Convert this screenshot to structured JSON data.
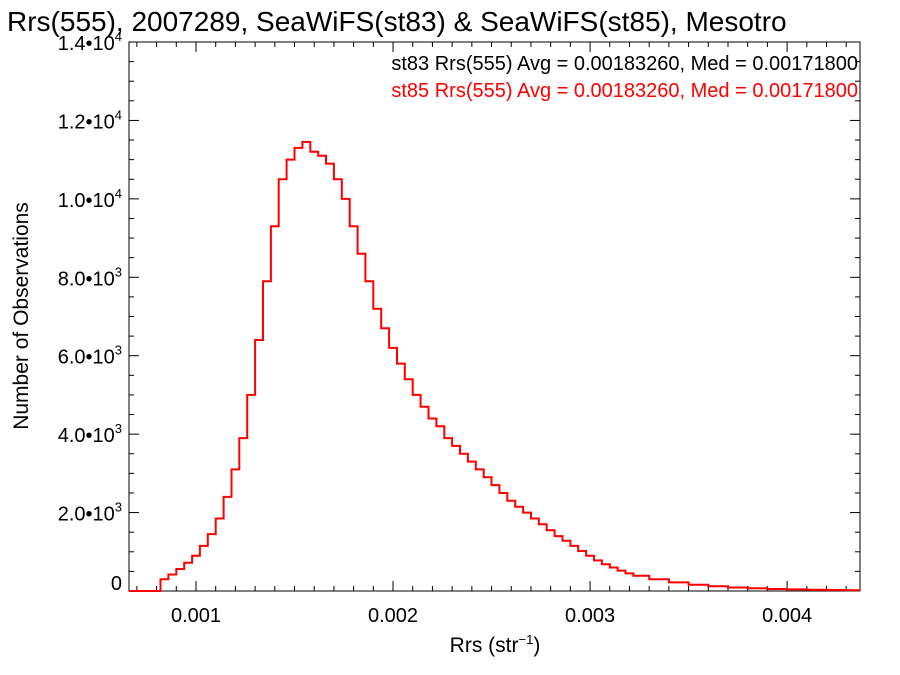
{
  "chart_data": {
    "type": "histogram-step",
    "title": "Rrs(555), 2007289, SeaWiFS(st83) & SeaWiFS(st85), Mesotro",
    "xlabel_base": "Rrs (str",
    "xlabel_sup": "−1",
    "xlabel_end": ")",
    "ylabel": "Number of Observations",
    "xlim": [
      0.00066,
      0.00437
    ],
    "ylim": [
      0,
      14000
    ],
    "x_ticks": [
      {
        "value": 0.001,
        "label": "0.001"
      },
      {
        "value": 0.002,
        "label": "0.002"
      },
      {
        "value": 0.003,
        "label": "0.003"
      },
      {
        "value": 0.004,
        "label": "0.004"
      }
    ],
    "y_ticks": [
      {
        "value": 0,
        "label": "0",
        "exp": ""
      },
      {
        "value": 2000,
        "label": "2.0•10",
        "exp": "3"
      },
      {
        "value": 4000,
        "label": "4.0•10",
        "exp": "3"
      },
      {
        "value": 6000,
        "label": "6.0•10",
        "exp": "3"
      },
      {
        "value": 8000,
        "label": "8.0•10",
        "exp": "3"
      },
      {
        "value": 10000,
        "label": "1.0•10",
        "exp": "4"
      },
      {
        "value": 12000,
        "label": "1.2•10",
        "exp": "4"
      },
      {
        "value": 14000,
        "label": "1.4•10",
        "exp": "4"
      }
    ],
    "legend_placement": "top-right",
    "legend": [
      {
        "text": "st83 Rrs(555) Avg = 0.00183260, Med = 0.00171800",
        "color": "#000000"
      },
      {
        "text": "st85 Rrs(555) Avg = 0.00183260, Med = 0.00171800",
        "color": "#ff0000"
      }
    ],
    "series": [
      {
        "color": "#ff0000",
        "x": [
          0.00082,
          0.00086,
          0.0009,
          0.00094,
          0.00098,
          0.00102,
          0.00106,
          0.0011,
          0.00114,
          0.00118,
          0.00122,
          0.00126,
          0.0013,
          0.00134,
          0.00138,
          0.00142,
          0.00146,
          0.0015,
          0.00154,
          0.00158,
          0.00162,
          0.00166,
          0.0017,
          0.00174,
          0.00178,
          0.00182,
          0.00186,
          0.0019,
          0.00194,
          0.00198,
          0.00202,
          0.00206,
          0.0021,
          0.00214,
          0.00218,
          0.00222,
          0.00226,
          0.0023,
          0.00234,
          0.00238,
          0.00242,
          0.00246,
          0.0025,
          0.00254,
          0.00258,
          0.00262,
          0.00266,
          0.0027,
          0.00274,
          0.00278,
          0.00282,
          0.00286,
          0.0029,
          0.00294,
          0.00298,
          0.00302,
          0.00306,
          0.0031,
          0.00314,
          0.00318,
          0.00322,
          0.0033,
          0.0034,
          0.0035,
          0.0036,
          0.0037,
          0.0038,
          0.0039,
          0.004,
          0.0041,
          0.0042,
          0.0043,
          0.00437
        ],
        "values": [
          300,
          420,
          560,
          720,
          900,
          1150,
          1450,
          1850,
          2400,
          3100,
          3900,
          5000,
          6400,
          7900,
          9300,
          10500,
          11000,
          11300,
          11450,
          11200,
          11100,
          10900,
          10500,
          10000,
          9300,
          8600,
          7900,
          7200,
          6700,
          6200,
          5800,
          5400,
          5000,
          4700,
          4400,
          4200,
          3900,
          3700,
          3500,
          3300,
          3100,
          2900,
          2700,
          2500,
          2300,
          2150,
          2000,
          1850,
          1700,
          1550,
          1400,
          1280,
          1150,
          1020,
          900,
          780,
          680,
          600,
          520,
          450,
          390,
          300,
          220,
          160,
          120,
          90,
          70,
          50,
          40,
          30,
          25,
          20,
          20
        ]
      }
    ]
  }
}
